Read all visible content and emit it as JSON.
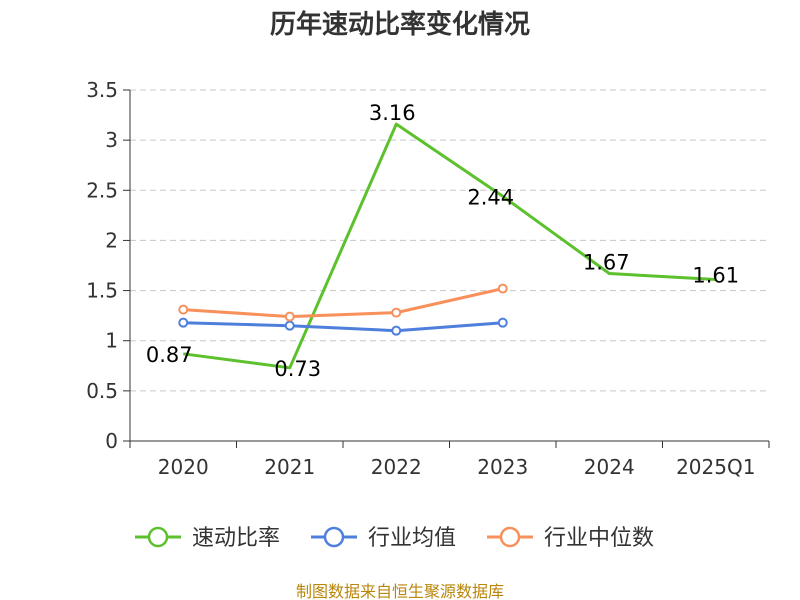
{
  "chart_data": {
    "type": "line",
    "title": "历年速动比率变化情况",
    "categories": [
      "2020",
      "2021",
      "2022",
      "2023",
      "2024",
      "2025Q1"
    ],
    "ylim": [
      0,
      3.5
    ],
    "yticks": [
      "0",
      "0.5",
      "1",
      "1.5",
      "2",
      "2.5",
      "3",
      "3.5"
    ],
    "grid": true,
    "legend_position": "bottom",
    "series": [
      {
        "name": "速动比率",
        "color": "#5cc12d",
        "values": [
          0.87,
          0.73,
          3.16,
          2.44,
          1.67,
          1.61
        ],
        "labels": [
          "0.87",
          "0.73",
          "3.16",
          "2.44",
          "1.67",
          "1.61"
        ],
        "show_labels": true,
        "show_markers": false
      },
      {
        "name": "行业均值",
        "color": "#4f7fdc",
        "values": [
          1.18,
          1.15,
          1.1,
          1.18,
          null,
          null
        ],
        "show_labels": false,
        "show_markers": true
      },
      {
        "name": "行业中位数",
        "color": "#f7905a",
        "values": [
          1.31,
          1.24,
          1.28,
          1.52,
          null,
          null
        ],
        "show_labels": false,
        "show_markers": true
      }
    ]
  },
  "footer": {
    "source": "制图数据来自恒生聚源数据库"
  }
}
